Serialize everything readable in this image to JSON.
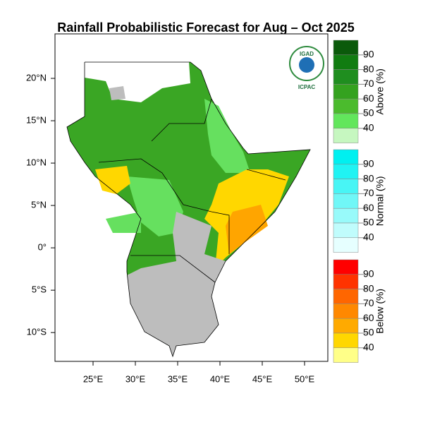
{
  "title": "Rainfall Probabilistic Forecast for Aug – Oct 2025",
  "map": {
    "lon_lim": [
      20.5,
      52.75
    ],
    "lat_lim": [
      -13.4,
      25.25
    ],
    "lon_ticks": [
      {
        "value": 25,
        "label": "25°E"
      },
      {
        "value": 30,
        "label": "30°E"
      },
      {
        "value": 35,
        "label": "35°E"
      },
      {
        "value": 40,
        "label": "40°E"
      },
      {
        "value": 45,
        "label": "45°E"
      },
      {
        "value": 50,
        "label": "50°E"
      }
    ],
    "lat_ticks": [
      {
        "value": 20,
        "label": "20°N"
      },
      {
        "value": 15,
        "label": "15°N"
      },
      {
        "value": 10,
        "label": "10°N"
      },
      {
        "value": 5,
        "label": "5°N"
      },
      {
        "value": 0,
        "label": "0°"
      },
      {
        "value": -5,
        "label": "5°S"
      },
      {
        "value": -10,
        "label": "10°S"
      }
    ]
  },
  "logo": {
    "top": "IGAD",
    "bottom": "ICPAC"
  },
  "legend": [
    {
      "title": "Above (%)",
      "labels": [
        90,
        80,
        70,
        60,
        50,
        40
      ],
      "colors": [
        "#0b5a0b",
        "#117c11",
        "#1f8e1f",
        "#34a21f",
        "#4bbb2d",
        "#62e65c",
        "#c6f7c0"
      ]
    },
    {
      "title": "Normal (%)",
      "labels": [
        90,
        80,
        70,
        60,
        50,
        40
      ],
      "colors": [
        "#00f0f0",
        "#20f3f3",
        "#48f5f5",
        "#70f7f7",
        "#98fafa",
        "#c0fcfc",
        "#e6ffff"
      ]
    },
    {
      "title": "Below (%)",
      "labels": [
        90,
        80,
        70,
        60,
        50,
        40
      ],
      "colors": [
        "#ff0000",
        "#ff3300",
        "#ff6600",
        "#ff8800",
        "#ffaa00",
        "#ffd700",
        "#ffff88"
      ]
    }
  ]
}
